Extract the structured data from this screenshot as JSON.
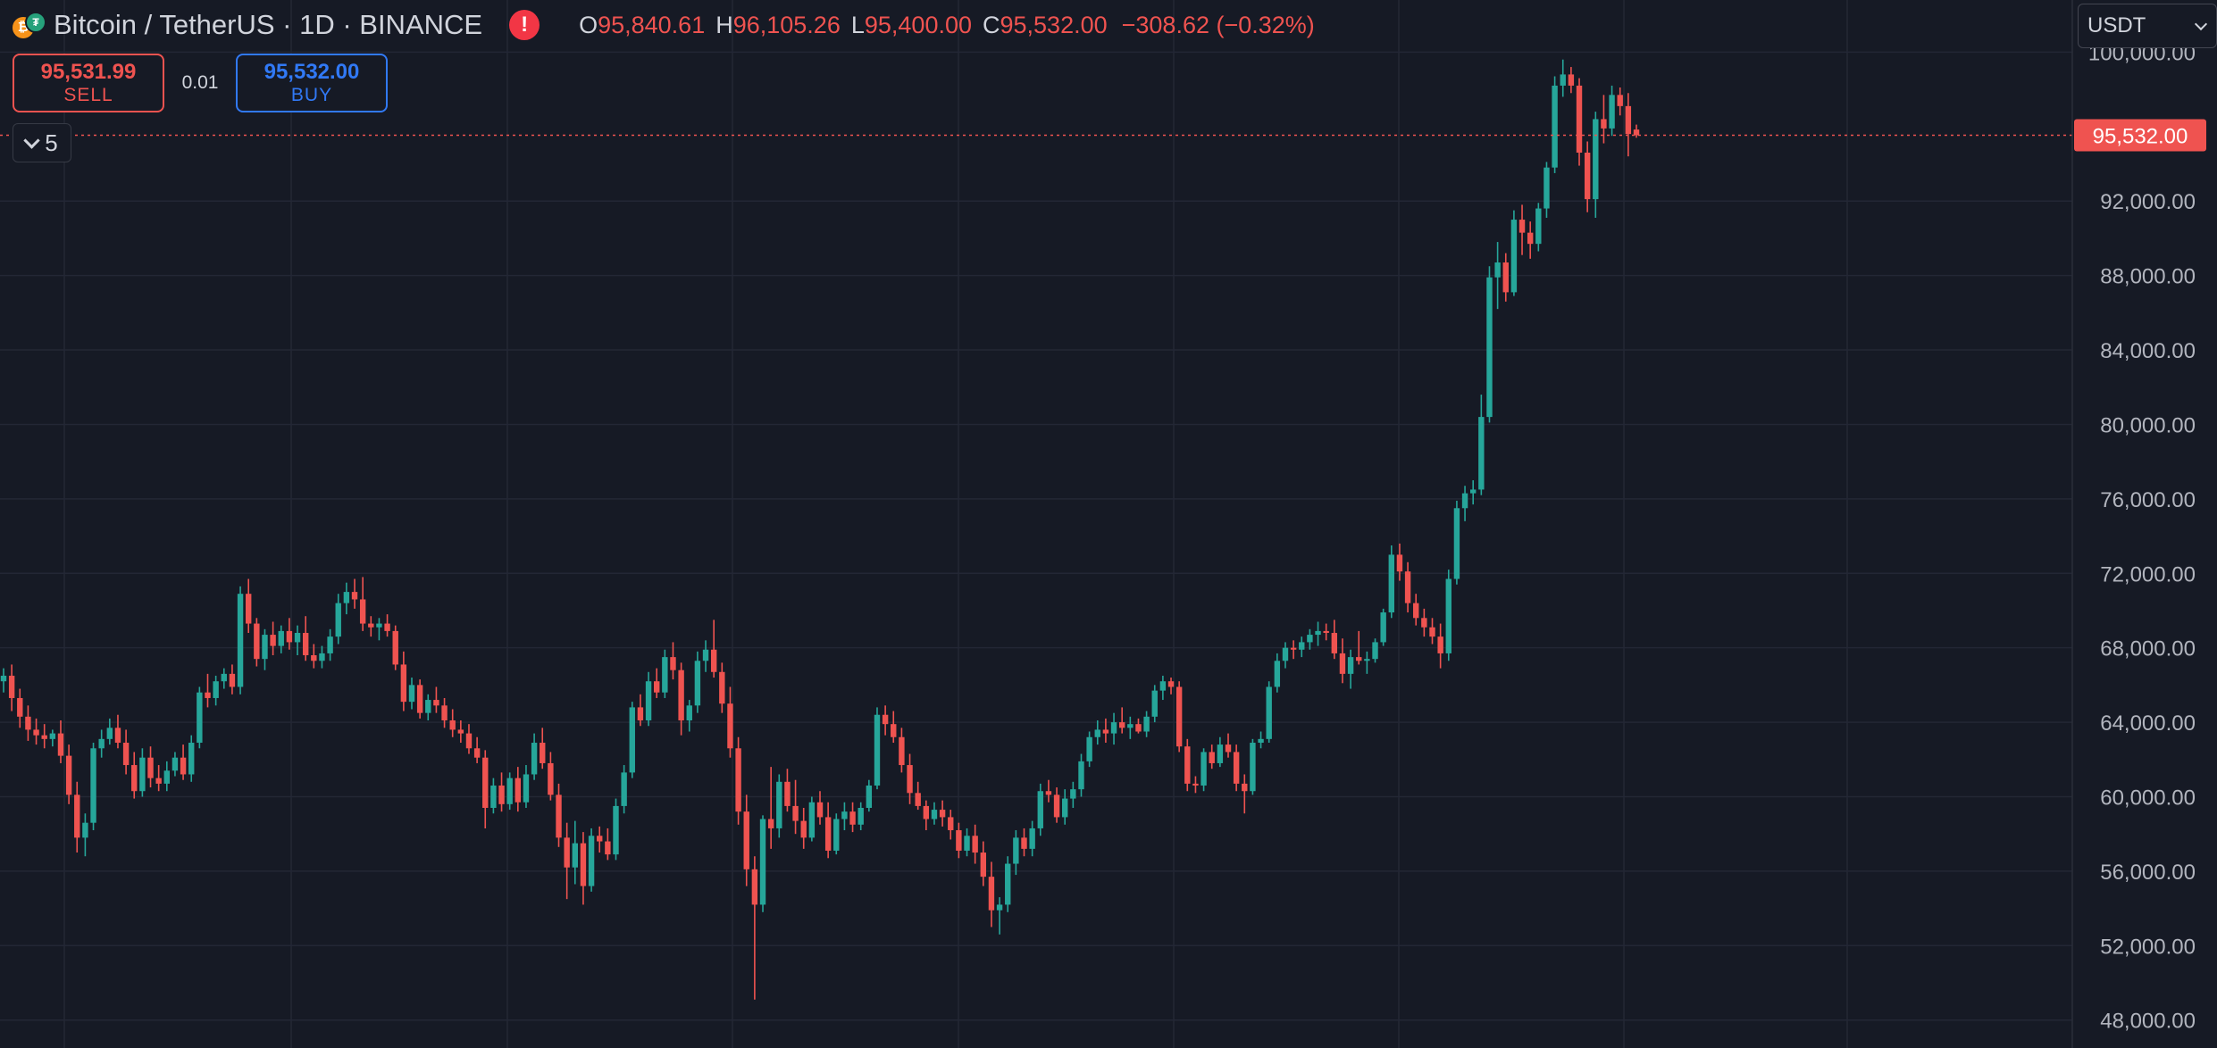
{
  "header": {
    "title": "Bitcoin / TetherUS · 1D · BINANCE",
    "icons": {
      "base": "bitcoin-icon",
      "quote": "tether-icon",
      "alert": "exclamation-icon"
    },
    "ohlc": {
      "open_label": "O",
      "open": "95,840.61",
      "high_label": "H",
      "high": "96,105.26",
      "low_label": "L",
      "low": "95,400.00",
      "close_label": "C",
      "close": "95,532.00",
      "change": "−308.62 (−0.32%)"
    }
  },
  "trade": {
    "sell_price": "95,531.99",
    "sell_label": "SELL",
    "spread": "0.01",
    "buy_price": "95,532.00",
    "buy_label": "BUY"
  },
  "indicators_toggle": {
    "count": "5"
  },
  "currency_select": {
    "value": "USDT"
  },
  "colors": {
    "up": "#26a69a",
    "down": "#ef5350",
    "background": "#161a25",
    "grid": "#232735",
    "price_line": "#ef5350"
  },
  "chart_data": {
    "type": "candlestick",
    "y_axis_ticks": [
      "100,000.00",
      "92,000.00",
      "88,000.00",
      "84,000.00",
      "80,000.00",
      "76,000.00",
      "72,000.00",
      "68,000.00",
      "64,000.00",
      "60,000.00",
      "56,000.00",
      "52,000.00",
      "48,000.00"
    ],
    "ylim": [
      46500,
      102800
    ],
    "last_price": 95532.0,
    "last_price_label": "95,532.00",
    "grid": true,
    "candles": [
      [
        66200,
        66900,
        65600,
        66500
      ],
      [
        66500,
        67100,
        64600,
        65300
      ],
      [
        65300,
        65800,
        63700,
        64300
      ],
      [
        64300,
        64900,
        63000,
        63600
      ],
      [
        63600,
        64200,
        62800,
        63300
      ],
      [
        63300,
        63900,
        62600,
        63100
      ],
      [
        63100,
        63600,
        62700,
        63400
      ],
      [
        63400,
        64100,
        61800,
        62200
      ],
      [
        62200,
        62800,
        59600,
        60100
      ],
      [
        60100,
        60800,
        57000,
        57800
      ],
      [
        57800,
        59100,
        56800,
        58600
      ],
      [
        58600,
        62900,
        58200,
        62600
      ],
      [
        62600,
        63600,
        62100,
        63100
      ],
      [
        63100,
        64200,
        62800,
        63700
      ],
      [
        63700,
        64400,
        62600,
        62900
      ],
      [
        62900,
        63600,
        61200,
        61700
      ],
      [
        61700,
        62400,
        59900,
        60300
      ],
      [
        60300,
        62600,
        60000,
        62100
      ],
      [
        62100,
        62700,
        60500,
        61000
      ],
      [
        61000,
        61700,
        60300,
        60700
      ],
      [
        60700,
        61900,
        60300,
        61400
      ],
      [
        61400,
        62400,
        61100,
        62100
      ],
      [
        62100,
        62800,
        60900,
        61200
      ],
      [
        61200,
        63300,
        60800,
        62900
      ],
      [
        62900,
        65900,
        62600,
        65600
      ],
      [
        65600,
        66600,
        64800,
        65300
      ],
      [
        65300,
        66500,
        64900,
        66200
      ],
      [
        66200,
        66900,
        65800,
        66600
      ],
      [
        66600,
        67100,
        65500,
        65900
      ],
      [
        65900,
        71300,
        65500,
        70900
      ],
      [
        70900,
        71700,
        68800,
        69300
      ],
      [
        69300,
        69600,
        67000,
        67400
      ],
      [
        67400,
        69000,
        66800,
        68700
      ],
      [
        68700,
        69400,
        67600,
        68100
      ],
      [
        68100,
        69200,
        67700,
        68900
      ],
      [
        68900,
        69600,
        67900,
        68300
      ],
      [
        68300,
        69200,
        67600,
        68800
      ],
      [
        68800,
        69700,
        67300,
        67600
      ],
      [
        67600,
        68200,
        66900,
        67300
      ],
      [
        67300,
        68100,
        66900,
        67700
      ],
      [
        67700,
        69000,
        67300,
        68600
      ],
      [
        68600,
        70900,
        68200,
        70400
      ],
      [
        70400,
        71500,
        69800,
        71000
      ],
      [
        71000,
        71700,
        70100,
        70600
      ],
      [
        70600,
        71800,
        68900,
        69300
      ],
      [
        69300,
        69700,
        68600,
        69100
      ],
      [
        69100,
        69600,
        68400,
        69300
      ],
      [
        69300,
        69800,
        68600,
        68900
      ],
      [
        68900,
        69200,
        66800,
        67100
      ],
      [
        67100,
        67800,
        64600,
        65100
      ],
      [
        65100,
        66400,
        64700,
        66000
      ],
      [
        66000,
        66300,
        64200,
        64500
      ],
      [
        64500,
        65500,
        64100,
        65200
      ],
      [
        65200,
        65900,
        64500,
        64900
      ],
      [
        64900,
        65300,
        63700,
        64100
      ],
      [
        64100,
        64700,
        63200,
        63600
      ],
      [
        63600,
        64100,
        62900,
        63400
      ],
      [
        63400,
        63900,
        62300,
        62600
      ],
      [
        62600,
        63200,
        61800,
        62100
      ],
      [
        62100,
        62500,
        58300,
        59400
      ],
      [
        59400,
        61000,
        59100,
        60600
      ],
      [
        60600,
        61300,
        59200,
        59600
      ],
      [
        59600,
        61300,
        59300,
        61000
      ],
      [
        61000,
        61600,
        59200,
        59700
      ],
      [
        59700,
        61700,
        59400,
        61200
      ],
      [
        61200,
        63400,
        60900,
        62900
      ],
      [
        62900,
        63700,
        61500,
        61800
      ],
      [
        61800,
        62400,
        59800,
        60100
      ],
      [
        60100,
        60700,
        57300,
        57800
      ],
      [
        57800,
        58600,
        54500,
        56200
      ],
      [
        56200,
        58700,
        55300,
        57500
      ],
      [
        57500,
        58100,
        54200,
        55200
      ],
      [
        55200,
        58300,
        54900,
        57900
      ],
      [
        57900,
        58400,
        57000,
        57600
      ],
      [
        57600,
        58300,
        56600,
        56900
      ],
      [
        56900,
        59900,
        56600,
        59500
      ],
      [
        59500,
        61700,
        59100,
        61300
      ],
      [
        61300,
        65100,
        61000,
        64800
      ],
      [
        64800,
        65500,
        63800,
        64100
      ],
      [
        64100,
        66700,
        63800,
        66200
      ],
      [
        66200,
        66900,
        65300,
        65600
      ],
      [
        65600,
        67900,
        65300,
        67500
      ],
      [
        67500,
        68300,
        66300,
        66800
      ],
      [
        66800,
        67200,
        63300,
        64100
      ],
      [
        64100,
        65200,
        63500,
        64900
      ],
      [
        64900,
        67800,
        64500,
        67300
      ],
      [
        67300,
        68400,
        66700,
        67900
      ],
      [
        67900,
        69500,
        66400,
        66700
      ],
      [
        66700,
        67200,
        64500,
        65000
      ],
      [
        65000,
        65900,
        62100,
        62600
      ],
      [
        62600,
        63200,
        58500,
        59200
      ],
      [
        59200,
        60100,
        55200,
        56100
      ],
      [
        56100,
        56800,
        49100,
        54200
      ],
      [
        54200,
        59000,
        53800,
        58800
      ],
      [
        58800,
        61600,
        57200,
        58300
      ],
      [
        58300,
        61200,
        57800,
        60800
      ],
      [
        60800,
        61500,
        59200,
        59500
      ],
      [
        59500,
        60900,
        58000,
        58700
      ],
      [
        58700,
        59400,
        57200,
        57800
      ],
      [
        57800,
        60000,
        57600,
        59700
      ],
      [
        59700,
        60300,
        58500,
        58900
      ],
      [
        58900,
        59700,
        56700,
        57100
      ],
      [
        57100,
        59100,
        56900,
        58800
      ],
      [
        58800,
        59700,
        58200,
        59200
      ],
      [
        59200,
        59700,
        58100,
        58500
      ],
      [
        58500,
        59700,
        58200,
        59400
      ],
      [
        59400,
        60900,
        59200,
        60600
      ],
      [
        60600,
        64800,
        60400,
        64400
      ],
      [
        64400,
        64900,
        63300,
        63900
      ],
      [
        63900,
        64600,
        62900,
        63200
      ],
      [
        63200,
        63700,
        61300,
        61700
      ],
      [
        61700,
        62300,
        59600,
        60200
      ],
      [
        60200,
        60800,
        59300,
        59500
      ],
      [
        59500,
        59800,
        58200,
        58800
      ],
      [
        58800,
        59700,
        58500,
        59300
      ],
      [
        59300,
        59800,
        58400,
        58900
      ],
      [
        58900,
        59300,
        57700,
        58200
      ],
      [
        58200,
        58600,
        56700,
        57100
      ],
      [
        57100,
        58300,
        56800,
        57900
      ],
      [
        57900,
        58500,
        56400,
        57000
      ],
      [
        57000,
        57600,
        55200,
        55700
      ],
      [
        55700,
        56500,
        53000,
        53900
      ],
      [
        53900,
        54600,
        52600,
        54200
      ],
      [
        54200,
        56800,
        53800,
        56400
      ],
      [
        56400,
        58200,
        55800,
        57800
      ],
      [
        57800,
        58300,
        56800,
        57200
      ],
      [
        57200,
        58700,
        56800,
        58300
      ],
      [
        58300,
        60700,
        57900,
        60300
      ],
      [
        60300,
        60900,
        59700,
        60100
      ],
      [
        60100,
        60500,
        58600,
        58900
      ],
      [
        58900,
        60400,
        58500,
        59900
      ],
      [
        59900,
        60800,
        59400,
        60400
      ],
      [
        60400,
        62300,
        60000,
        61900
      ],
      [
        61900,
        63500,
        61600,
        63200
      ],
      [
        63200,
        64100,
        62800,
        63600
      ],
      [
        63600,
        64200,
        62900,
        63400
      ],
      [
        63400,
        64500,
        62800,
        64000
      ],
      [
        64000,
        64800,
        63400,
        63700
      ],
      [
        63700,
        64300,
        63100,
        63900
      ],
      [
        63900,
        64200,
        63400,
        63500
      ],
      [
        63500,
        64600,
        63200,
        64300
      ],
      [
        64300,
        66000,
        64000,
        65700
      ],
      [
        65700,
        66500,
        65200,
        66200
      ],
      [
        66200,
        66400,
        65500,
        65900
      ],
      [
        65900,
        66200,
        62400,
        62700
      ],
      [
        62700,
        63100,
        60300,
        60700
      ],
      [
        60700,
        61100,
        60200,
        60600
      ],
      [
        60600,
        62600,
        60300,
        62400
      ],
      [
        62400,
        62800,
        61500,
        61800
      ],
      [
        61800,
        63200,
        61600,
        62800
      ],
      [
        62800,
        63400,
        62100,
        62400
      ],
      [
        62400,
        62800,
        60300,
        60700
      ],
      [
        60700,
        61200,
        59100,
        60300
      ],
      [
        60300,
        63100,
        60100,
        62900
      ],
      [
        62900,
        63500,
        62600,
        63100
      ],
      [
        63100,
        66200,
        62900,
        65900
      ],
      [
        65900,
        67700,
        65600,
        67300
      ],
      [
        67300,
        68300,
        66900,
        68000
      ],
      [
        68000,
        68400,
        67400,
        67900
      ],
      [
        67900,
        68600,
        67500,
        68300
      ],
      [
        68300,
        69000,
        67900,
        68700
      ],
      [
        68700,
        69400,
        68100,
        68900
      ],
      [
        68900,
        69300,
        68400,
        68800
      ],
      [
        68800,
        69500,
        67400,
        67700
      ],
      [
        67700,
        68500,
        66100,
        66600
      ],
      [
        66600,
        67900,
        65800,
        67500
      ],
      [
        67500,
        68900,
        67100,
        67300
      ],
      [
        67300,
        67800,
        66600,
        67400
      ],
      [
        67400,
        68500,
        67200,
        68300
      ],
      [
        68300,
        70100,
        68100,
        69900
      ],
      [
        69900,
        73500,
        69600,
        73000
      ],
      [
        73000,
        73600,
        71600,
        72100
      ],
      [
        72100,
        72600,
        69900,
        70400
      ],
      [
        70400,
        70900,
        69200,
        69600
      ],
      [
        69600,
        70100,
        68600,
        69100
      ],
      [
        69100,
        69600,
        68200,
        68600
      ],
      [
        68600,
        69300,
        66900,
        67700
      ],
      [
        67700,
        72200,
        67300,
        71700
      ],
      [
        71700,
        75900,
        71400,
        75500
      ],
      [
        75500,
        76700,
        74800,
        76300
      ],
      [
        76300,
        77000,
        75700,
        76500
      ],
      [
        76500,
        81600,
        76200,
        80400
      ],
      [
        80400,
        88500,
        80100,
        87900
      ],
      [
        87900,
        89800,
        86200,
        88700
      ],
      [
        88700,
        89200,
        86600,
        87100
      ],
      [
        87100,
        91500,
        86900,
        91000
      ],
      [
        91000,
        91800,
        89100,
        90300
      ],
      [
        90300,
        90900,
        88900,
        89700
      ],
      [
        89700,
        91900,
        89300,
        91600
      ],
      [
        91600,
        94100,
        91100,
        93800
      ],
      [
        93800,
        98700,
        93500,
        98200
      ],
      [
        98200,
        99600,
        97600,
        98800
      ],
      [
        98800,
        99200,
        97800,
        98200
      ],
      [
        98200,
        98600,
        93900,
        94600
      ],
      [
        94600,
        95200,
        91400,
        92100
      ],
      [
        92100,
        96800,
        91100,
        96400
      ],
      [
        96400,
        97700,
        95100,
        95900
      ],
      [
        95900,
        98200,
        95500,
        97700
      ],
      [
        97700,
        98100,
        96600,
        97100
      ],
      [
        97100,
        97800,
        94400,
        95600
      ],
      [
        95840.61,
        96105.26,
        95400,
        95532
      ]
    ]
  }
}
